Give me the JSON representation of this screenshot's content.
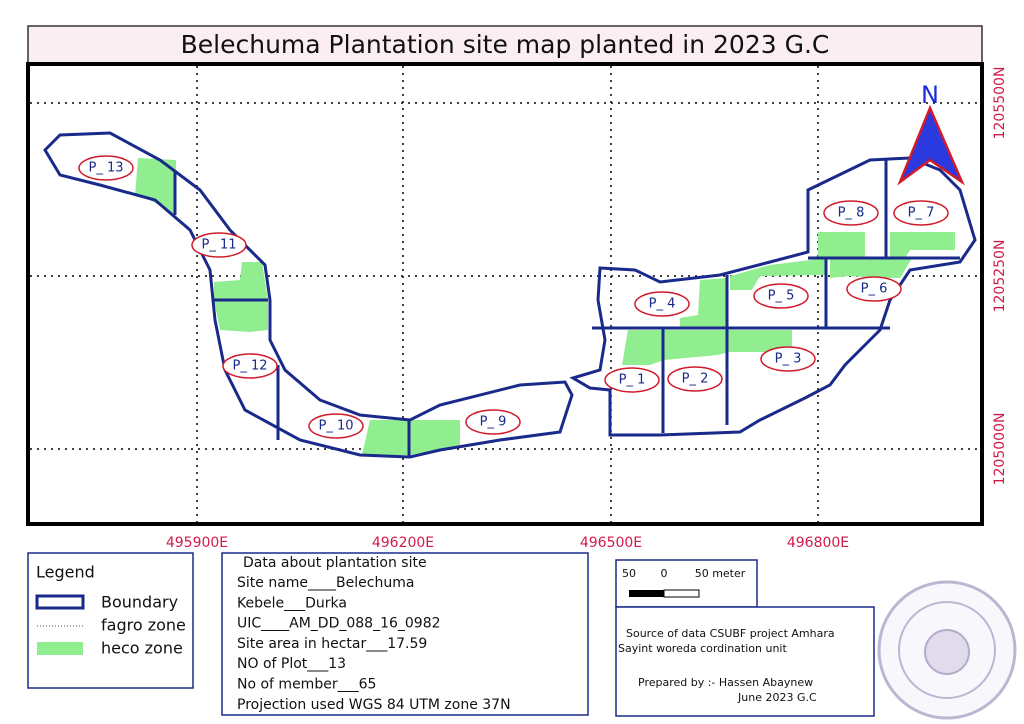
{
  "header": {
    "title": "Belechuma Plantation site map planted in 2023 G.C"
  },
  "map": {
    "x_coords": [
      "495900E",
      "496200E",
      "496500E",
      "496800E"
    ],
    "y_coords": [
      "1205500N",
      "1205250N",
      "1205000N"
    ],
    "north": "N",
    "plots": [
      "P_ 1",
      "P_ 2",
      "P_ 3",
      "P_ 4",
      "P_ 5",
      "P_ 6",
      "P_ 7",
      "P_ 8",
      "P_ 9",
      "P_ 10",
      "P_ 11",
      "P_ 12",
      "P_ 13"
    ]
  },
  "legend": {
    "title": "Legend",
    "items": [
      "Boundary",
      "fagro zone",
      "heco zone"
    ]
  },
  "data_box": {
    "title": "Data about plantation site",
    "lines": [
      "Site name____Belechuma",
      "Kebele___Durka",
      "UIC____AM_DD_088_16_0982",
      "Site area in hectar___17.59",
      "NO of Plot___13",
      "No of member___65",
      "Projection used     WGS 84 UTM zone 37N"
    ]
  },
  "scale_bar": {
    "labels": [
      "50",
      "0",
      "50 meter"
    ]
  },
  "source_box": {
    "source": [
      "Source of data CSUBF project Amhara",
      "Sayint woreda cordination unit"
    ],
    "prepared_by": "Prepared by :- Hassen Abaynew",
    "date": "June 2023 G.C"
  }
}
